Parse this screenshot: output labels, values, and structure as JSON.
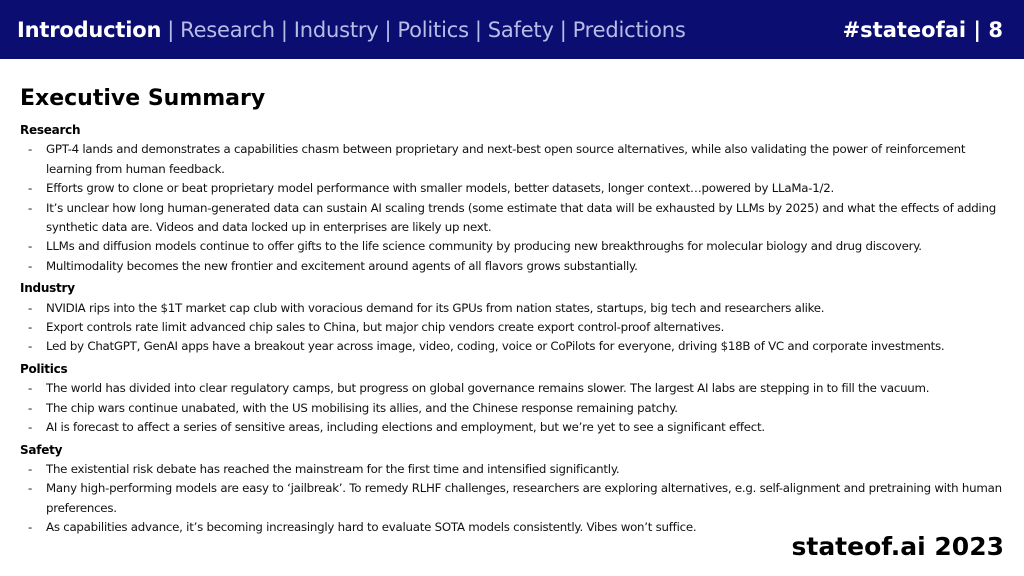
{
  "header": {
    "nav": {
      "active": "Introduction",
      "items": [
        "Research",
        "Industry",
        "Politics",
        "Safety",
        "Predictions"
      ],
      "separator": "|"
    },
    "tag": "#stateofai | 8"
  },
  "page_title": "Executive Summary",
  "sections": [
    {
      "title": "Research",
      "bullets": [
        "GPT-4 lands and demonstrates a capabilities chasm between proprietary and next-best open source alternatives, while also validating the power of reinforcement learning from human feedback.",
        "Efforts grow to clone or beat proprietary model performance with smaller models, better datasets, longer context…powered by LLaMa-1/2.",
        "It’s unclear how long human-generated data can sustain AI scaling trends (some estimate that data will be exhausted by LLMs by 2025) and what the effects of adding synthetic data are. Videos and data locked up in enterprises are likely up next.",
        "LLMs and diffusion models continue to offer gifts to the life science community by producing new breakthroughs for molecular biology and drug discovery.",
        "Multimodality becomes the new frontier and excitement around agents of all flavors grows substantially."
      ]
    },
    {
      "title": "Industry",
      "bullets": [
        "NVIDIA rips into the $1T market cap club with voracious demand for its GPUs from nation states, startups, big tech and researchers alike.",
        "Export controls rate limit advanced chip sales to China, but major chip vendors create export control-proof alternatives.",
        "Led by ChatGPT, GenAI apps have a breakout year across image, video, coding, voice or CoPilots for everyone, driving $18B of VC and corporate investments."
      ]
    },
    {
      "title": "Politics",
      "bullets": [
        "The world has divided into clear regulatory camps, but progress on global governance remains slower. The largest AI labs are stepping in to fill the vacuum.",
        "The chip wars continue unabated, with the US mobilising its allies, and the Chinese response remaining patchy.",
        "AI is forecast to affect a series of sensitive areas, including elections and employment, but we’re yet to see a significant effect."
      ]
    },
    {
      "title": "Safety",
      "bullets": [
        "The existential risk debate has reached the mainstream for the first time and intensified significantly.",
        "Many high-performing models are easy to ‘jailbreak’. To remedy RLHF challenges, researchers are exploring alternatives, e.g. self-alignment and pretraining with human preferences.",
        "As capabilities advance, it’s becoming increasingly hard to evaluate SOTA models consistently. Vibes won’t suffice."
      ]
    }
  ],
  "footer": {
    "brand": "stateof.ai 2023"
  },
  "colors": {
    "header_bg": "#0b0d70",
    "nav_inactive": "#b8bde8",
    "text": "#111111"
  }
}
